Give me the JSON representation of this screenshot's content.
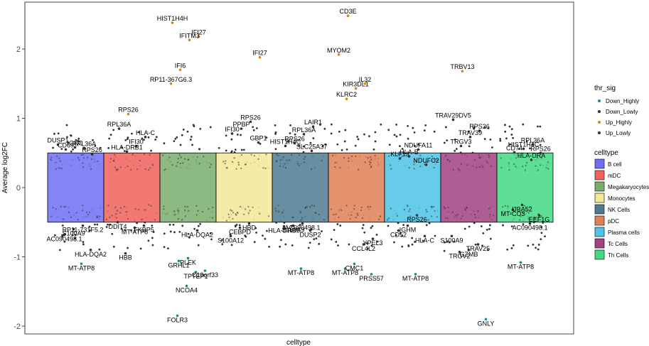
{
  "chart_data": {
    "type": "scatter",
    "xlabel": "celltype",
    "ylabel": "Average log2FC",
    "ylim": [
      -2.2,
      2.5
    ],
    "yticks": [
      -2,
      -1,
      0,
      1,
      2
    ],
    "grid": false,
    "categories": [
      "B cell",
      "mDC",
      "Megakaryocytes",
      "Monocytes",
      "NK Cells",
      "pDC",
      "Plasma cells",
      "Tc Cells",
      "Th Cells"
    ],
    "tile_colors": [
      "#6e6ef5",
      "#f0605c",
      "#79ad6c",
      "#f2e898",
      "#4d7b90",
      "#e07f56",
      "#4cc2e6",
      "#a14283",
      "#43d884"
    ],
    "tile_range": [
      -0.5,
      0.5
    ],
    "legends": {
      "thr_sig": {
        "title": "thr_sig",
        "position": "right",
        "items": [
          {
            "label": "Down_Highly",
            "color": "#0b8f8f"
          },
          {
            "label": "Down_Lowly",
            "color": "#333333"
          },
          {
            "label": "Up_Highly",
            "color": "#d4870b"
          },
          {
            "label": "Up_Lowly",
            "color": "#333333"
          }
        ]
      },
      "celltype": {
        "title": "celltype",
        "position": "right"
      }
    },
    "labeled_points": [
      {
        "label": "DUSP1",
        "cat": 0,
        "y": 0.62,
        "group": "Up_Lowly"
      },
      {
        "label": "RPL36A",
        "cat": 0,
        "y": 0.57,
        "group": "Up_Lowly"
      },
      {
        "label": "IGKC",
        "cat": 0,
        "y": 0.58,
        "group": "Up_Lowly"
      },
      {
        "label": "CD69",
        "cat": 0,
        "y": 0.55,
        "group": "Up_Lowly"
      },
      {
        "label": "RPS26",
        "cat": 0,
        "y": 0.48,
        "group": "Up_Lowly"
      },
      {
        "label": "RP11-731F5.2",
        "cat": 0,
        "y": -0.55,
        "group": "Down_Lowly"
      },
      {
        "label": "S100A9",
        "cat": 0,
        "y": -0.6,
        "group": "Down_Lowly"
      },
      {
        "label": "AC090498.1",
        "cat": 0,
        "y": -0.68,
        "group": "Down_Lowly"
      },
      {
        "label": "HLA-DQA2",
        "cat": 0,
        "y": -0.9,
        "group": "Down_Lowly"
      },
      {
        "label": "MT-ATP8",
        "cat": 0,
        "y": -1.1,
        "group": "Down_Highly"
      },
      {
        "label": "RPS26",
        "cat": 1,
        "y": 1.06,
        "group": "Up_Highly"
      },
      {
        "label": "RPL36A",
        "cat": 1,
        "y": 0.85,
        "group": "Up_Lowly"
      },
      {
        "label": "HLA-C",
        "cat": 1,
        "y": 0.73,
        "group": "Up_Lowly"
      },
      {
        "label": "IFI30",
        "cat": 1,
        "y": 0.6,
        "group": "Up_Lowly"
      },
      {
        "label": "HLA-DRB1",
        "cat": 1,
        "y": 0.52,
        "group": "Up_Lowly"
      },
      {
        "label": "DDIT4",
        "cat": 1,
        "y": -0.5,
        "group": "Down_Lowly"
      },
      {
        "label": "FKBP5",
        "cat": 1,
        "y": -0.55,
        "group": "Down_Lowly"
      },
      {
        "label": "MT-ATP8",
        "cat": 1,
        "y": -0.58,
        "group": "Down_Lowly"
      },
      {
        "label": "HBB",
        "cat": 1,
        "y": -0.95,
        "group": "Down_Lowly"
      },
      {
        "label": "HIST1H4H",
        "cat": 2,
        "y": 2.38,
        "group": "Up_Highly"
      },
      {
        "label": "IFI27",
        "cat": 2,
        "y": 2.18,
        "group": "Up_Highly"
      },
      {
        "label": "IFITM3",
        "cat": 2,
        "y": 2.13,
        "group": "Up_Highly"
      },
      {
        "label": "IFI6",
        "cat": 2,
        "y": 1.7,
        "group": "Up_Highly"
      },
      {
        "label": "RP11-367G6.3",
        "cat": 2,
        "y": 1.5,
        "group": "Up_Highly"
      },
      {
        "label": "HLA-DQA2",
        "cat": 2,
        "y": -0.62,
        "group": "Down_Lowly"
      },
      {
        "label": "PLEK",
        "cat": 2,
        "y": -1.02,
        "group": "Down_Highly"
      },
      {
        "label": "GRHL1",
        "cat": 2,
        "y": -1.06,
        "group": "Down_Highly"
      },
      {
        "label": "C19orf33",
        "cat": 2,
        "y": -1.2,
        "group": "Down_Highly"
      },
      {
        "label": "TPTEP1",
        "cat": 2,
        "y": -1.22,
        "group": "Down_Highly"
      },
      {
        "label": "NCOA4",
        "cat": 2,
        "y": -1.42,
        "group": "Down_Highly"
      },
      {
        "label": "FOLR3",
        "cat": 2,
        "y": -1.85,
        "group": "Down_Highly"
      },
      {
        "label": "IFI27",
        "cat": 3,
        "y": 1.88,
        "group": "Up_Highly"
      },
      {
        "label": "RPS26",
        "cat": 3,
        "y": 0.95,
        "group": "Up_Lowly"
      },
      {
        "label": "PPBP",
        "cat": 3,
        "y": 0.85,
        "group": "Up_Lowly"
      },
      {
        "label": "IFI30",
        "cat": 3,
        "y": 0.78,
        "group": "Up_Lowly"
      },
      {
        "label": "GBP1",
        "cat": 3,
        "y": 0.65,
        "group": "Up_Lowly"
      },
      {
        "label": "HBD",
        "cat": 3,
        "y": -0.52,
        "group": "Down_Lowly"
      },
      {
        "label": "CEBPD",
        "cat": 3,
        "y": -0.58,
        "group": "Down_Lowly"
      },
      {
        "label": "S100A12",
        "cat": 3,
        "y": -0.7,
        "group": "Down_Lowly"
      },
      {
        "label": "LAIR1",
        "cat": 4,
        "y": 0.88,
        "group": "Up_Lowly"
      },
      {
        "label": "RPL36A",
        "cat": 4,
        "y": 0.77,
        "group": "Up_Lowly"
      },
      {
        "label": "RPS26",
        "cat": 4,
        "y": 0.64,
        "group": "Up_Lowly"
      },
      {
        "label": "HIST1H4C",
        "cat": 4,
        "y": 0.6,
        "group": "Up_Lowly"
      },
      {
        "label": "SLC25A37",
        "cat": 4,
        "y": 0.53,
        "group": "Up_Lowly"
      },
      {
        "label": "AC090498.1",
        "cat": 4,
        "y": -0.52,
        "group": "Down_Lowly"
      },
      {
        "label": "S100A9",
        "cat": 4,
        "y": -0.55,
        "group": "Down_Lowly"
      },
      {
        "label": "HLA-DRB5",
        "cat": 4,
        "y": -0.56,
        "group": "Down_Lowly"
      },
      {
        "label": "DUSP2",
        "cat": 4,
        "y": -0.62,
        "group": "Down_Lowly"
      },
      {
        "label": "MT-ATP8",
        "cat": 4,
        "y": -1.17,
        "group": "Down_Highly"
      },
      {
        "label": "CD3E",
        "cat": 5,
        "y": 2.48,
        "group": "Up_Highly"
      },
      {
        "label": "MYOM2",
        "cat": 5,
        "y": 1.92,
        "group": "Up_Highly"
      },
      {
        "label": "IL32",
        "cat": 5,
        "y": 1.5,
        "group": "Up_Highly"
      },
      {
        "label": "KIR3DL1",
        "cat": 5,
        "y": 1.43,
        "group": "Up_Highly"
      },
      {
        "label": "KLRC2",
        "cat": 5,
        "y": 1.28,
        "group": "Up_Highly"
      },
      {
        "label": "YPEL3",
        "cat": 5,
        "y": -0.74,
        "group": "Down_Lowly"
      },
      {
        "label": "CCL4L2",
        "cat": 5,
        "y": -0.82,
        "group": "Down_Lowly"
      },
      {
        "label": "CMC1",
        "cat": 5,
        "y": -1.1,
        "group": "Down_Highly"
      },
      {
        "label": "MT-ATP8",
        "cat": 5,
        "y": -1.17,
        "group": "Down_Highly"
      },
      {
        "label": "PRSS57",
        "cat": 5,
        "y": -1.25,
        "group": "Down_Highly"
      },
      {
        "label": "NDUFA11",
        "cat": 6,
        "y": 0.55,
        "group": "Up_Lowly"
      },
      {
        "label": "HLA-B",
        "cat": 6,
        "y": 0.45,
        "group": "Up_Lowly"
      },
      {
        "label": "KLF13",
        "cat": 6,
        "y": 0.42,
        "group": "Up_Lowly"
      },
      {
        "label": "NDUFC2",
        "cat": 6,
        "y": 0.33,
        "group": "Up_Lowly"
      },
      {
        "label": "RPS26",
        "cat": 6,
        "y": -0.4,
        "group": "Down_Lowly"
      },
      {
        "label": "IGHM",
        "cat": 6,
        "y": -0.55,
        "group": "Down_Lowly"
      },
      {
        "label": "CD52",
        "cat": 6,
        "y": -0.62,
        "group": "Down_Lowly"
      },
      {
        "label": "HLA-C",
        "cat": 6,
        "y": -0.7,
        "group": "Down_Lowly"
      },
      {
        "label": "MT-ATP8",
        "cat": 6,
        "y": -1.25,
        "group": "Down_Highly"
      },
      {
        "label": "TRBV13",
        "cat": 7,
        "y": 1.68,
        "group": "Up_Highly"
      },
      {
        "label": "TRAV29DV5",
        "cat": 7,
        "y": 0.98,
        "group": "Up_Lowly"
      },
      {
        "label": "RPS26",
        "cat": 7,
        "y": 0.82,
        "group": "Up_Lowly"
      },
      {
        "label": "TRAV39",
        "cat": 7,
        "y": 0.73,
        "group": "Up_Lowly"
      },
      {
        "label": "TRGV3",
        "cat": 7,
        "y": 0.6,
        "group": "Up_Lowly"
      },
      {
        "label": "S100A9",
        "cat": 7,
        "y": -0.7,
        "group": "Down_Lowly"
      },
      {
        "label": "TRAV25",
        "cat": 7,
        "y": -0.82,
        "group": "Down_Lowly"
      },
      {
        "label": "GZMB",
        "cat": 7,
        "y": -0.9,
        "group": "Down_Lowly"
      },
      {
        "label": "TRGV2",
        "cat": 7,
        "y": -0.93,
        "group": "Down_Lowly"
      },
      {
        "label": "GNLY",
        "cat": 7,
        "y": -1.9,
        "group": "Down_Highly"
      },
      {
        "label": "RPL36A",
        "cat": 8,
        "y": 0.62,
        "group": "Up_Lowly"
      },
      {
        "label": "HIST1H4C",
        "cat": 8,
        "y": 0.56,
        "group": "Up_Lowly"
      },
      {
        "label": "CD74",
        "cat": 8,
        "y": 0.51,
        "group": "Up_Lowly"
      },
      {
        "label": "RPS26",
        "cat": 8,
        "y": 0.5,
        "group": "Up_Lowly"
      },
      {
        "label": "HLA-DRA",
        "cat": 8,
        "y": 0.4,
        "group": "Up_Lowly"
      },
      {
        "label": "UBA52",
        "cat": 8,
        "y": -0.25,
        "group": "Down_Lowly"
      },
      {
        "label": "MT-CO3",
        "cat": 8,
        "y": -0.32,
        "group": "Down_Lowly"
      },
      {
        "label": "EEF1G",
        "cat": 8,
        "y": -0.4,
        "group": "Down_Lowly"
      },
      {
        "label": "AC090498.1",
        "cat": 8,
        "y": -0.52,
        "group": "Down_Lowly"
      },
      {
        "label": "MT-ATP8",
        "cat": 8,
        "y": -1.08,
        "group": "Down_Highly"
      }
    ]
  }
}
